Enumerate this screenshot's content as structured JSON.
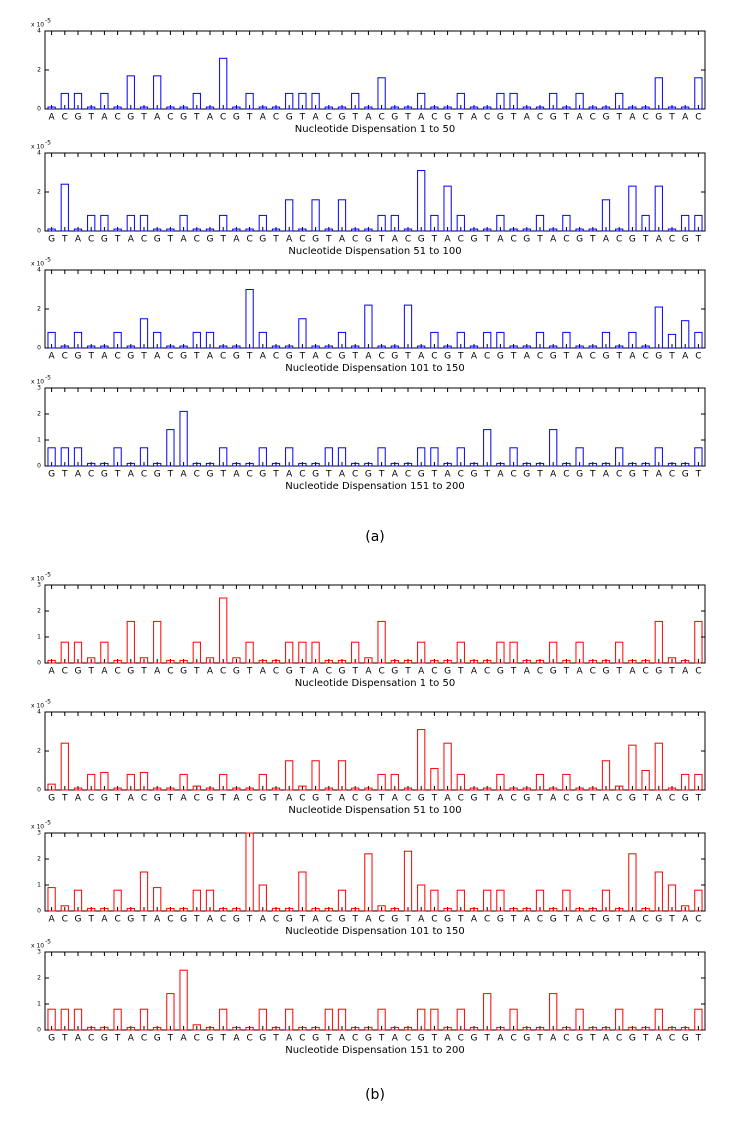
{
  "captions": [
    "(a)",
    "(b)"
  ],
  "chart_data": [
    {
      "type": "bar",
      "xlabel": "Nucleotide Dispensation 1 to 50",
      "y_scale_label": "x 10",
      "y_scale_exponent": "-5",
      "color": "#0000ff",
      "ylim": [
        0,
        4
      ],
      "yticks": [
        0,
        2,
        4
      ],
      "categories": [
        "A",
        "C",
        "G",
        "T",
        "A",
        "C",
        "G",
        "T",
        "A",
        "C",
        "G",
        "T",
        "A",
        "C",
        "G",
        "T",
        "A",
        "C",
        "G",
        "T",
        "A",
        "C",
        "G",
        "T",
        "A",
        "C",
        "G",
        "T",
        "A",
        "C",
        "G",
        "T",
        "A",
        "C",
        "G",
        "T",
        "A",
        "C",
        "G",
        "T",
        "A",
        "C",
        "G",
        "T",
        "A",
        "C",
        "G",
        "T",
        "A",
        "C"
      ],
      "values": [
        0.1,
        0.8,
        0.8,
        0.1,
        0.8,
        0.1,
        1.7,
        0.1,
        1.7,
        0.1,
        0.1,
        0.8,
        0.1,
        2.6,
        0.1,
        0.8,
        0.1,
        0.1,
        0.8,
        0.8,
        0.8,
        0.1,
        0.1,
        0.8,
        0.1,
        1.6,
        0.1,
        0.1,
        0.8,
        0.1,
        0.1,
        0.8,
        0.1,
        0.1,
        0.8,
        0.8,
        0.1,
        0.1,
        0.8,
        0.1,
        0.8,
        0.1,
        0.1,
        0.8,
        0.1,
        0.1,
        1.6,
        0.1,
        0.1,
        1.6
      ]
    },
    {
      "type": "bar",
      "xlabel": "Nucleotide Dispensation 51 to 100",
      "y_scale_label": "x 10",
      "y_scale_exponent": "-5",
      "color": "#0000ff",
      "ylim": [
        0,
        4
      ],
      "yticks": [
        0,
        2,
        4
      ],
      "categories": [
        "G",
        "T",
        "A",
        "C",
        "G",
        "T",
        "A",
        "C",
        "G",
        "T",
        "A",
        "C",
        "G",
        "T",
        "A",
        "C",
        "G",
        "T",
        "A",
        "C",
        "G",
        "T",
        "A",
        "C",
        "G",
        "T",
        "A",
        "C",
        "G",
        "T",
        "A",
        "C",
        "G",
        "T",
        "A",
        "C",
        "G",
        "T",
        "A",
        "C",
        "G",
        "T",
        "A",
        "C",
        "G",
        "T",
        "A",
        "C",
        "G",
        "T"
      ],
      "values": [
        0.1,
        2.4,
        0.1,
        0.8,
        0.8,
        0.1,
        0.8,
        0.8,
        0.1,
        0.1,
        0.8,
        0.1,
        0.1,
        0.8,
        0.1,
        0.1,
        0.8,
        0.1,
        1.6,
        0.1,
        1.6,
        0.1,
        1.6,
        0.1,
        0.1,
        0.8,
        0.8,
        0.1,
        3.1,
        0.8,
        2.3,
        0.8,
        0.1,
        0.1,
        0.8,
        0.1,
        0.1,
        0.8,
        0.1,
        0.8,
        0.1,
        0.1,
        1.6,
        0.1,
        2.3,
        0.8,
        2.3,
        0.1,
        0.8,
        0.8
      ]
    },
    {
      "type": "bar",
      "xlabel": "Nucleotide Dispensation 101 to 150",
      "y_scale_label": "x 10",
      "y_scale_exponent": "-5",
      "color": "#0000ff",
      "ylim": [
        0,
        4
      ],
      "yticks": [
        0,
        2,
        4
      ],
      "categories": [
        "A",
        "C",
        "G",
        "T",
        "A",
        "C",
        "G",
        "T",
        "A",
        "C",
        "G",
        "T",
        "A",
        "C",
        "G",
        "T",
        "A",
        "C",
        "G",
        "T",
        "A",
        "C",
        "G",
        "T",
        "A",
        "C",
        "G",
        "T",
        "A",
        "C",
        "G",
        "T",
        "A",
        "C",
        "G",
        "T",
        "A",
        "C",
        "G",
        "T",
        "A",
        "C",
        "G",
        "T",
        "A",
        "C",
        "G",
        "T",
        "A",
        "C"
      ],
      "values": [
        0.8,
        0.1,
        0.8,
        0.1,
        0.1,
        0.8,
        0.1,
        1.5,
        0.8,
        0.1,
        0.1,
        0.8,
        0.8,
        0.1,
        0.1,
        3.0,
        0.8,
        0.1,
        0.1,
        1.5,
        0.1,
        0.1,
        0.8,
        0.1,
        2.2,
        0.1,
        0.1,
        2.2,
        0.1,
        0.8,
        0.1,
        0.8,
        0.1,
        0.8,
        0.8,
        0.1,
        0.1,
        0.8,
        0.1,
        0.8,
        0.1,
        0.1,
        0.8,
        0.1,
        0.8,
        0.1,
        2.1,
        0.7,
        1.4,
        0.8
      ]
    },
    {
      "type": "bar",
      "xlabel": "Nucleotide Dispensation 151 to 200",
      "y_scale_label": "x 10",
      "y_scale_exponent": "-5",
      "color": "#0000ff",
      "ylim": [
        0,
        3
      ],
      "yticks": [
        0,
        1,
        2,
        3
      ],
      "categories": [
        "G",
        "T",
        "A",
        "C",
        "G",
        "T",
        "A",
        "C",
        "G",
        "T",
        "A",
        "C",
        "G",
        "T",
        "A",
        "C",
        "G",
        "T",
        "A",
        "C",
        "G",
        "T",
        "A",
        "C",
        "G",
        "T",
        "A",
        "C",
        "G",
        "T",
        "A",
        "C",
        "G",
        "T",
        "A",
        "C",
        "G",
        "T",
        "A",
        "C",
        "G",
        "T",
        "A",
        "C",
        "G",
        "T",
        "A",
        "C",
        "G",
        "T"
      ],
      "values": [
        0.7,
        0.7,
        0.7,
        0.1,
        0.1,
        0.7,
        0.1,
        0.7,
        0.1,
        1.4,
        2.1,
        0.1,
        0.1,
        0.7,
        0.1,
        0.1,
        0.7,
        0.1,
        0.7,
        0.1,
        0.1,
        0.7,
        0.7,
        0.1,
        0.1,
        0.7,
        0.1,
        0.1,
        0.7,
        0.7,
        0.1,
        0.7,
        0.1,
        1.4,
        0.1,
        0.7,
        0.1,
        0.1,
        1.4,
        0.1,
        0.7,
        0.1,
        0.1,
        0.7,
        0.1,
        0.1,
        0.7,
        0.1,
        0.1,
        0.7
      ]
    },
    {
      "type": "bar",
      "xlabel": "Nucleotide Dispensation 1 to 50",
      "y_scale_label": "x 10",
      "y_scale_exponent": "-5",
      "color": "#ff0000",
      "ylim": [
        0,
        3
      ],
      "yticks": [
        0,
        1,
        2,
        3
      ],
      "categories": [
        "A",
        "C",
        "G",
        "T",
        "A",
        "C",
        "G",
        "T",
        "A",
        "C",
        "G",
        "T",
        "A",
        "C",
        "G",
        "T",
        "A",
        "C",
        "G",
        "T",
        "A",
        "C",
        "G",
        "T",
        "A",
        "C",
        "G",
        "T",
        "A",
        "C",
        "G",
        "T",
        "A",
        "C",
        "G",
        "T",
        "A",
        "C",
        "G",
        "T",
        "A",
        "C",
        "G",
        "T",
        "A",
        "C",
        "G",
        "T",
        "A",
        "C"
      ],
      "values": [
        0.1,
        0.8,
        0.8,
        0.2,
        0.8,
        0.1,
        1.6,
        0.2,
        1.6,
        0.1,
        0.1,
        0.8,
        0.2,
        2.5,
        0.2,
        0.8,
        0.1,
        0.1,
        0.8,
        0.8,
        0.8,
        0.1,
        0.1,
        0.8,
        0.2,
        1.6,
        0.1,
        0.1,
        0.8,
        0.1,
        0.1,
        0.8,
        0.1,
        0.1,
        0.8,
        0.8,
        0.1,
        0.1,
        0.8,
        0.1,
        0.8,
        0.1,
        0.1,
        0.8,
        0.1,
        0.1,
        1.6,
        0.2,
        0.1,
        1.6
      ]
    },
    {
      "type": "bar",
      "xlabel": "Nucleotide Dispensation 51 to 100",
      "y_scale_label": "x 10",
      "y_scale_exponent": "-5",
      "color": "#ff0000",
      "ylim": [
        0,
        4
      ],
      "yticks": [
        0,
        2,
        4
      ],
      "categories": [
        "G",
        "T",
        "A",
        "C",
        "G",
        "T",
        "A",
        "C",
        "G",
        "T",
        "A",
        "C",
        "G",
        "T",
        "A",
        "C",
        "G",
        "T",
        "A",
        "C",
        "G",
        "T",
        "A",
        "C",
        "G",
        "T",
        "A",
        "C",
        "G",
        "T",
        "A",
        "C",
        "G",
        "T",
        "A",
        "C",
        "G",
        "T",
        "A",
        "C",
        "G",
        "T",
        "A",
        "C",
        "G",
        "T",
        "A",
        "C",
        "G",
        "T"
      ],
      "values": [
        0.3,
        2.4,
        0.1,
        0.8,
        0.9,
        0.1,
        0.8,
        0.9,
        0.1,
        0.1,
        0.8,
        0.2,
        0.1,
        0.8,
        0.1,
        0.1,
        0.8,
        0.1,
        1.5,
        0.2,
        1.5,
        0.1,
        1.5,
        0.1,
        0.1,
        0.8,
        0.8,
        0.1,
        3.1,
        1.1,
        2.4,
        0.8,
        0.1,
        0.1,
        0.8,
        0.1,
        0.1,
        0.8,
        0.1,
        0.8,
        0.1,
        0.1,
        1.5,
        0.2,
        2.3,
        1.0,
        2.4,
        0.1,
        0.8,
        0.8
      ]
    },
    {
      "type": "bar",
      "xlabel": "Nucleotide Dispensation 101 to 150",
      "y_scale_label": "x 10",
      "y_scale_exponent": "-5",
      "color": "#ff0000",
      "ylim": [
        0,
        3
      ],
      "yticks": [
        0,
        1,
        2,
        3
      ],
      "categories": [
        "A",
        "C",
        "G",
        "T",
        "A",
        "C",
        "G",
        "T",
        "A",
        "C",
        "G",
        "T",
        "A",
        "C",
        "G",
        "T",
        "A",
        "C",
        "G",
        "T",
        "A",
        "C",
        "G",
        "T",
        "A",
        "C",
        "G",
        "T",
        "A",
        "C",
        "G",
        "T",
        "A",
        "C",
        "G",
        "T",
        "A",
        "C",
        "G",
        "T",
        "A",
        "C",
        "G",
        "T",
        "A",
        "C",
        "G",
        "T",
        "A",
        "C"
      ],
      "values": [
        0.9,
        0.2,
        0.8,
        0.1,
        0.1,
        0.8,
        0.1,
        1.5,
        0.9,
        0.1,
        0.1,
        0.8,
        0.8,
        0.1,
        0.1,
        3.0,
        1.0,
        0.1,
        0.1,
        1.5,
        0.1,
        0.1,
        0.8,
        0.1,
        2.2,
        0.2,
        0.1,
        2.3,
        1.0,
        0.8,
        0.1,
        0.8,
        0.1,
        0.8,
        0.8,
        0.1,
        0.1,
        0.8,
        0.1,
        0.8,
        0.1,
        0.1,
        0.8,
        0.1,
        2.2,
        0.1,
        1.5,
        1.0,
        0.2,
        0.8
      ]
    },
    {
      "type": "bar",
      "xlabel": "Nucleotide Dispensation 151 to 200",
      "y_scale_label": "x 10",
      "y_scale_exponent": "-5",
      "color": "#ff0000",
      "ylim": [
        0,
        3
      ],
      "yticks": [
        0,
        1,
        2,
        3
      ],
      "categories": [
        "G",
        "T",
        "A",
        "C",
        "G",
        "T",
        "A",
        "C",
        "G",
        "T",
        "A",
        "C",
        "G",
        "T",
        "A",
        "C",
        "G",
        "T",
        "A",
        "C",
        "G",
        "T",
        "A",
        "C",
        "G",
        "T",
        "A",
        "C",
        "G",
        "T",
        "A",
        "C",
        "G",
        "T",
        "A",
        "C",
        "G",
        "T",
        "A",
        "C",
        "G",
        "T",
        "A",
        "C",
        "G",
        "T",
        "A",
        "C",
        "G",
        "T"
      ],
      "values": [
        0.8,
        0.8,
        0.8,
        0.1,
        0.1,
        0.8,
        0.1,
        0.8,
        0.1,
        1.4,
        2.3,
        0.2,
        0.1,
        0.8,
        0.1,
        0.1,
        0.8,
        0.1,
        0.8,
        0.1,
        0.1,
        0.8,
        0.8,
        0.1,
        0.1,
        0.8,
        0.1,
        0.1,
        0.8,
        0.8,
        0.1,
        0.8,
        0.1,
        1.4,
        0.1,
        0.8,
        0.1,
        0.1,
        1.4,
        0.1,
        0.8,
        0.1,
        0.1,
        0.8,
        0.1,
        0.1,
        0.8,
        0.1,
        0.1,
        0.8
      ]
    }
  ]
}
